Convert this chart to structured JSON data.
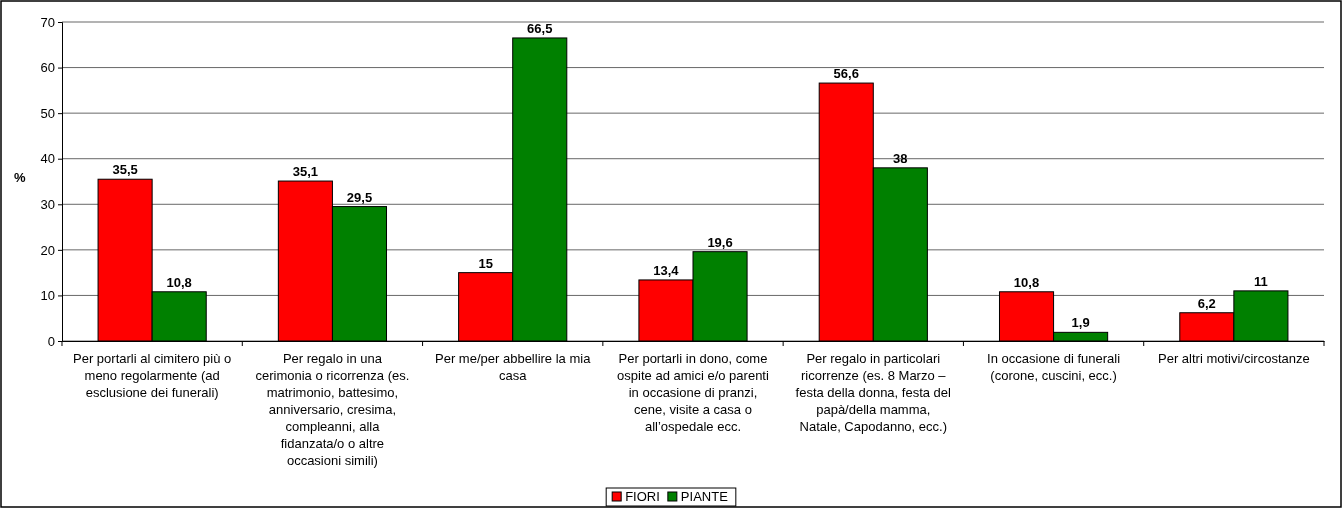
{
  "chart_data": {
    "type": "bar",
    "categories": [
      "Per portarli al cimitero più o meno regolarmente (ad esclusione dei funerali)",
      "Per regalo in una cerimonia o ricorrenza (es. matrimonio, battesimo, anniversario, cresima, compleanni, alla fidanzata/o o altre occasioni simili)",
      "Per me/per abbellire la mia casa",
      "Per portarli in dono, come ospite ad amici e/o parenti in occasione di pranzi, cene, visite a casa o all’ospedale ecc.",
      "Per regalo in particolari ricorrenze (es. 8 Marzo – festa della donna, festa del papà/della mamma, Natale, Capodanno, ecc.)",
      "In occasione di funerali (corone, cuscini, ecc.)",
      "Per altri motivi/circostanze"
    ],
    "series": [
      {
        "name": "FIORI",
        "color": "#ff0000",
        "values": [
          35.5,
          35.1,
          15,
          13.4,
          56.6,
          10.8,
          6.2
        ],
        "value_labels": [
          "35,5",
          "35,1",
          "15",
          "13,4",
          "56,6",
          "10,8",
          "6,2"
        ]
      },
      {
        "name": "PIANTE",
        "color": "#008000",
        "values": [
          10.8,
          29.5,
          66.5,
          19.6,
          38,
          1.9,
          11
        ],
        "value_labels": [
          "10,8",
          "29,5",
          "66,5",
          "19,6",
          "38",
          "1,9",
          "11"
        ]
      }
    ],
    "ylabel": "%",
    "ylim": [
      0,
      70
    ],
    "yticks": [
      0,
      10,
      20,
      30,
      40,
      50,
      60,
      70
    ],
    "grid": "y",
    "legend": "bottom"
  }
}
